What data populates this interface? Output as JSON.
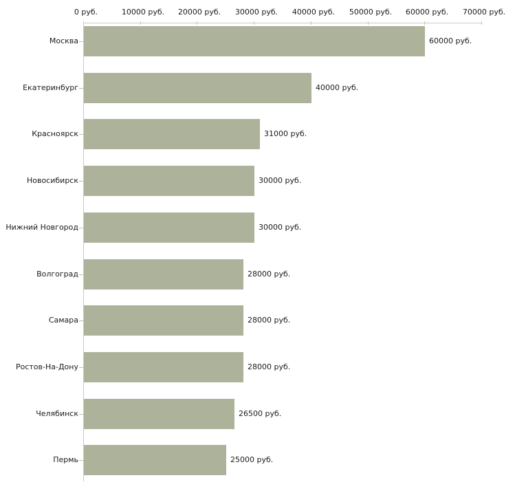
{
  "chart_data": {
    "type": "bar",
    "orientation": "horizontal",
    "title": "",
    "xlabel": "",
    "ylabel": "",
    "categories": [
      "Москва",
      "Екатеринбург",
      "Красноярск",
      "Новосибирск",
      "Нижний Новгород",
      "Волгоград",
      "Самара",
      "Ростов-На-Дону",
      "Челябинск",
      "Пермь"
    ],
    "values": [
      60000,
      40000,
      31000,
      30000,
      30000,
      28000,
      28000,
      28000,
      26500,
      25000
    ],
    "value_labels": [
      "60000 руб.",
      "40000 руб.",
      "31000 руб.",
      "30000 руб.",
      "30000 руб.",
      "28000 руб.",
      "28000 руб.",
      "28000 руб.",
      "26500 руб.",
      "25000 руб."
    ],
    "xlim": [
      0,
      70000
    ],
    "x_ticks": [
      0,
      10000,
      20000,
      30000,
      40000,
      50000,
      60000,
      70000
    ],
    "x_tick_labels": [
      "0 руб.",
      "10000 руб.",
      "20000 руб.",
      "30000 руб.",
      "40000 руб.",
      "50000 руб.",
      "60000 руб.",
      "70000 руб."
    ],
    "axis_position": "top",
    "grid": false,
    "legend": false,
    "colors": {
      "bar_fill": "#adb29a",
      "axis_line": "#c8c8c8",
      "x_tick": "#c8c8a0",
      "y_tick": "#bebea0",
      "text": "#1a1a1a",
      "background": "#ffffff"
    }
  }
}
